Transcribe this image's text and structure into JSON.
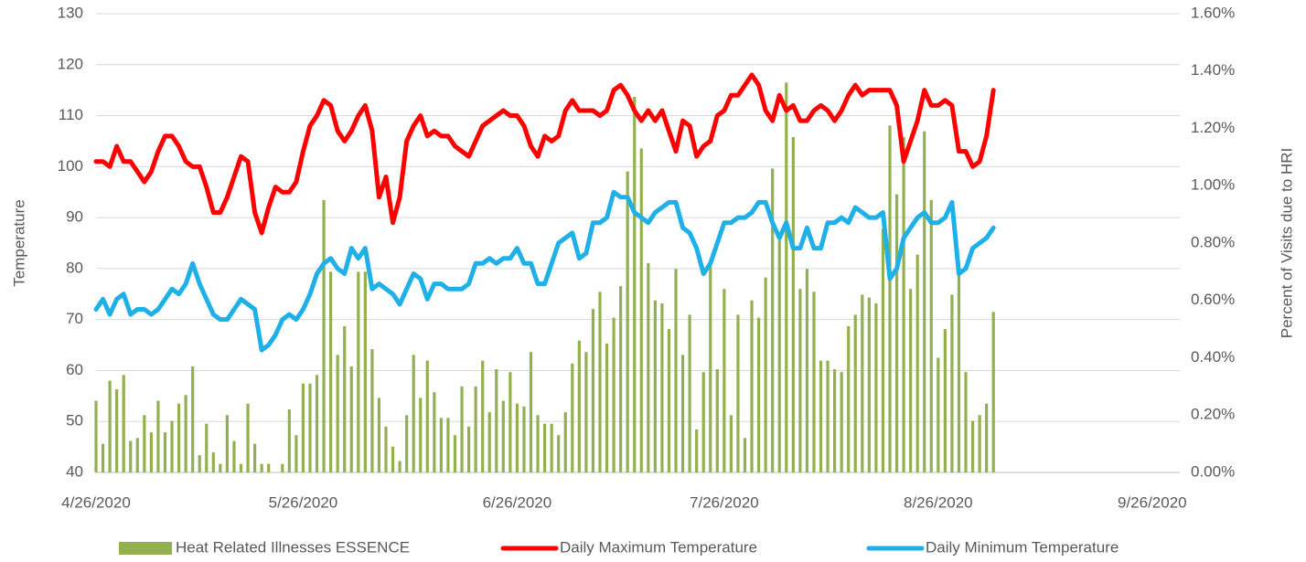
{
  "chart_data": {
    "type": "combo",
    "y_label": "Temperature",
    "y2_label": "Percent of Visits due to HRI",
    "x": [
      "4/26/2020",
      "4/27/2020",
      "4/28/2020",
      "4/29/2020",
      "4/30/2020",
      "5/1/2020",
      "5/2/2020",
      "5/3/2020",
      "5/4/2020",
      "5/5/2020",
      "5/6/2020",
      "5/7/2020",
      "5/8/2020",
      "5/9/2020",
      "5/10/2020",
      "5/11/2020",
      "5/12/2020",
      "5/13/2020",
      "5/14/2020",
      "5/15/2020",
      "5/16/2020",
      "5/17/2020",
      "5/18/2020",
      "5/19/2020",
      "5/20/2020",
      "5/21/2020",
      "5/22/2020",
      "5/23/2020",
      "5/24/2020",
      "5/25/2020",
      "5/26/2020",
      "5/27/2020",
      "5/28/2020",
      "5/29/2020",
      "5/30/2020",
      "5/31/2020",
      "6/1/2020",
      "6/2/2020",
      "6/3/2020",
      "6/4/2020",
      "6/5/2020",
      "6/6/2020",
      "6/7/2020",
      "6/8/2020",
      "6/9/2020",
      "6/10/2020",
      "6/11/2020",
      "6/12/2020",
      "6/13/2020",
      "6/14/2020",
      "6/15/2020",
      "6/16/2020",
      "6/17/2020",
      "6/18/2020",
      "6/19/2020",
      "6/20/2020",
      "6/21/2020",
      "6/22/2020",
      "6/23/2020",
      "6/24/2020",
      "6/25/2020",
      "6/26/2020",
      "6/27/2020",
      "6/28/2020",
      "6/29/2020",
      "6/30/2020",
      "7/1/2020",
      "7/2/2020",
      "7/3/2020",
      "7/4/2020",
      "7/5/2020",
      "7/6/2020",
      "7/7/2020",
      "7/8/2020",
      "7/9/2020",
      "7/10/2020",
      "7/11/2020",
      "7/12/2020",
      "7/13/2020",
      "7/14/2020",
      "7/15/2020",
      "7/16/2020",
      "7/17/2020",
      "7/18/2020",
      "7/19/2020",
      "7/20/2020",
      "7/21/2020",
      "7/22/2020",
      "7/23/2020",
      "7/24/2020",
      "7/25/2020",
      "7/26/2020",
      "7/27/2020",
      "7/28/2020",
      "7/29/2020",
      "7/30/2020",
      "7/31/2020",
      "8/1/2020",
      "8/2/2020",
      "8/3/2020",
      "8/4/2020",
      "8/5/2020",
      "8/6/2020",
      "8/7/2020",
      "8/8/2020",
      "8/9/2020",
      "8/10/2020",
      "8/11/2020",
      "8/12/2020",
      "8/13/2020",
      "8/14/2020",
      "8/15/2020",
      "8/16/2020",
      "8/17/2020",
      "8/18/2020",
      "8/19/2020",
      "8/20/2020",
      "8/21/2020",
      "8/22/2020",
      "8/23/2020",
      "8/24/2020",
      "8/25/2020",
      "8/26/2020",
      "8/27/2020",
      "8/28/2020",
      "8/29/2020",
      "8/30/2020",
      "8/31/2020",
      "9/1/2020",
      "9/2/2020",
      "9/3/2020"
    ],
    "xlim": [
      "4/26/2020",
      "9/30/2020"
    ],
    "xticks": [
      "4/26/2020",
      "5/26/2020",
      "6/26/2020",
      "7/26/2020",
      "8/26/2020",
      "9/26/2020"
    ],
    "ylim": [
      40,
      130
    ],
    "yticks": [
      40,
      50,
      60,
      70,
      80,
      90,
      100,
      110,
      120,
      130
    ],
    "y2lim": [
      0,
      1.6
    ],
    "y2ticks": [
      {
        "value": 0,
        "label": "0.00%"
      },
      {
        "value": 0.2,
        "label": "0.20%"
      },
      {
        "value": 0.4,
        "label": "0.40%"
      },
      {
        "value": 0.6,
        "label": "0.60%"
      },
      {
        "value": 0.8,
        "label": "0.80%"
      },
      {
        "value": 1.0,
        "label": "1.00%"
      },
      {
        "value": 1.2,
        "label": "1.20%"
      },
      {
        "value": 1.4,
        "label": "1.40%"
      },
      {
        "value": 1.6,
        "label": "1.60%"
      }
    ],
    "grid": true,
    "series": [
      {
        "name": "Heat Related Illnesses ESSENCE",
        "type": "bar",
        "axis": "y2",
        "color": "#92b050",
        "values": [
          0.25,
          0.1,
          0.32,
          0.29,
          0.34,
          0.11,
          0.12,
          0.2,
          0.14,
          0.25,
          0.14,
          0.18,
          0.24,
          0.27,
          0.37,
          0.06,
          0.17,
          0.07,
          0.03,
          0.2,
          0.11,
          0.03,
          0.24,
          0.1,
          0.03,
          0.03,
          0,
          0.03,
          0.22,
          0.13,
          0.31,
          0.31,
          0.34,
          0.95,
          0.7,
          0.41,
          0.51,
          0.37,
          0.7,
          0.7,
          0.43,
          0.26,
          0.16,
          0.09,
          0.04,
          0.2,
          0.41,
          0.26,
          0.39,
          0.28,
          0.19,
          0.19,
          0.13,
          0.3,
          0.16,
          0.3,
          0.39,
          0.21,
          0.36,
          0.25,
          0.35,
          0.24,
          0.23,
          0.42,
          0.2,
          0.17,
          0.17,
          0.13,
          0.21,
          0.38,
          0.46,
          0.42,
          0.57,
          0.63,
          0.45,
          0.54,
          0.65,
          1.05,
          1.31,
          1.13,
          0.73,
          0.6,
          0.59,
          0.5,
          0.71,
          0.41,
          0.55,
          0.15,
          0.35,
          0.73,
          0.36,
          0.64,
          0.2,
          0.55,
          0.12,
          0.6,
          0.54,
          0.68,
          1.06,
          0.81,
          1.36,
          1.17,
          0.64,
          0.71,
          0.63,
          0.39,
          0.39,
          0.36,
          0.35,
          0.51,
          0.55,
          0.62,
          0.61,
          0.59,
          0.85,
          1.21,
          0.97,
          1.17,
          0.64,
          0.76,
          1.19,
          0.95,
          0.4,
          0.5,
          0.62,
          0.73,
          0.35,
          0.18,
          0.2,
          0.24,
          0.56
        ]
      },
      {
        "name": "Daily Maximum Temperature",
        "type": "line",
        "color": "#ff0000",
        "values": [
          101,
          101,
          100,
          104,
          101,
          101,
          99,
          97,
          99,
          103,
          106,
          106,
          104,
          101,
          100,
          100,
          96,
          91,
          91,
          94,
          98,
          102,
          101,
          91,
          87,
          92,
          96,
          95,
          95,
          97,
          103,
          108,
          110,
          113,
          112,
          107,
          105,
          107,
          110,
          112,
          107,
          94,
          98,
          89,
          94,
          105,
          108,
          110,
          106,
          107,
          106,
          106,
          104,
          103,
          102,
          105,
          108,
          109,
          110,
          111,
          110,
          110,
          108,
          104,
          102,
          106,
          105,
          106,
          111,
          113,
          111,
          111,
          111,
          110,
          111,
          115,
          116,
          114,
          111,
          109,
          111,
          109,
          111,
          107,
          103,
          109,
          108,
          102,
          104,
          105,
          110,
          111,
          114,
          114,
          116,
          118,
          116,
          111,
          109,
          114,
          111,
          112,
          109,
          109,
          111,
          112,
          111,
          109,
          111,
          114,
          116,
          114,
          115,
          115,
          115,
          115,
          112,
          101,
          105,
          109,
          115,
          112,
          112,
          113,
          112,
          103,
          103,
          100,
          101,
          106,
          115
        ]
      },
      {
        "name": "Daily Minimum Temperature",
        "type": "line",
        "color": "#1fb0e8",
        "values": [
          72,
          74,
          71,
          74,
          75,
          71,
          72,
          72,
          71,
          72,
          74,
          76,
          75,
          77,
          81,
          77,
          74,
          71,
          70,
          70,
          72,
          74,
          73,
          72,
          64,
          65,
          67,
          70,
          71,
          70,
          72,
          75,
          79,
          81,
          82,
          80,
          79,
          84,
          82,
          84,
          76,
          77,
          76,
          75,
          73,
          76,
          79,
          78,
          74,
          77,
          77,
          76,
          76,
          76,
          77,
          81,
          81,
          82,
          81,
          82,
          82,
          84,
          81,
          81,
          77,
          77,
          81,
          85,
          86,
          87,
          82,
          83,
          89,
          89,
          90,
          95,
          94,
          94,
          91,
          90,
          89,
          91,
          92,
          93,
          93,
          88,
          87,
          84,
          79,
          81,
          85,
          89,
          89,
          90,
          90,
          91,
          93,
          93,
          89,
          86,
          89,
          84,
          84,
          88,
          84,
          84,
          89,
          89,
          90,
          89,
          92,
          91,
          90,
          90,
          91,
          78,
          80,
          86,
          88,
          90,
          91,
          89,
          89,
          90,
          93,
          79,
          80,
          84,
          85,
          86,
          88
        ]
      }
    ]
  }
}
